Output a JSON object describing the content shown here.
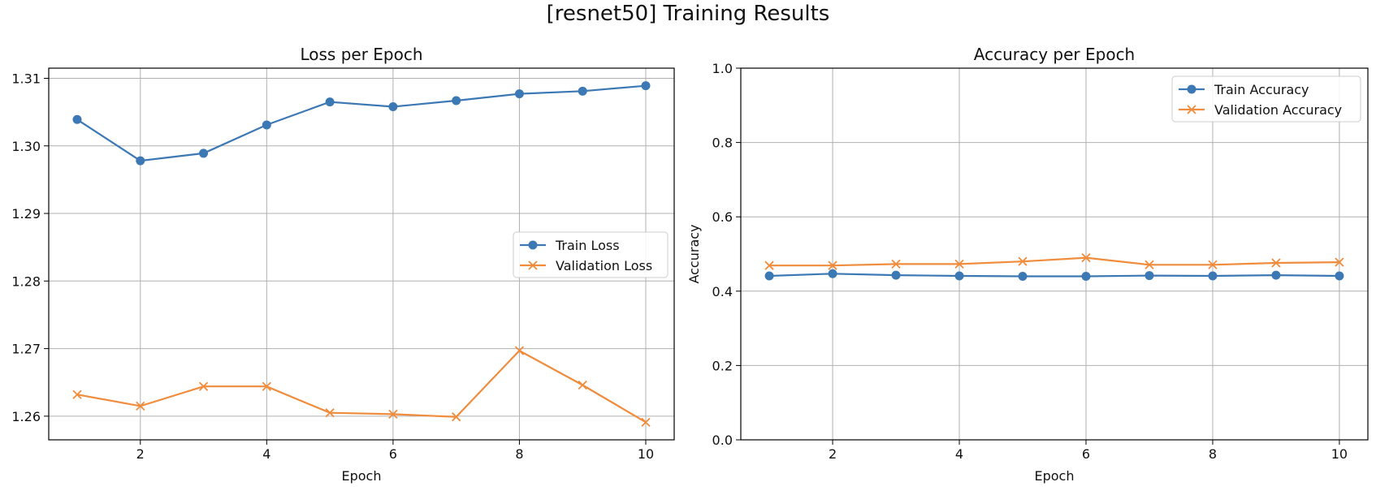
{
  "figure": {
    "title": "[resnet50] Training Results"
  },
  "colors": {
    "train": "#3c78b4",
    "validation": "#f08c3c",
    "grid": "#b0b0b0",
    "axes": "#000000"
  },
  "chart_data": [
    {
      "type": "line",
      "title": "Loss per Epoch",
      "xlabel": "Epoch",
      "ylabel": "",
      "x": [
        1,
        2,
        3,
        4,
        5,
        6,
        7,
        8,
        9,
        10
      ],
      "xlim": [
        0.55,
        10.45
      ],
      "ylim": [
        1.2565,
        1.3115
      ],
      "xticks": [
        2,
        4,
        6,
        8,
        10
      ],
      "yticks": [
        1.26,
        1.27,
        1.28,
        1.29,
        1.3,
        1.31
      ],
      "ytick_labels": [
        "1.26",
        "1.27",
        "1.28",
        "1.29",
        "1.30",
        "1.31"
      ],
      "grid": true,
      "legend": "center-right",
      "series": [
        {
          "name": "Train Loss",
          "marker": "circle",
          "color": "#3c78b4",
          "values": [
            1.3039,
            1.2978,
            1.2989,
            1.3031,
            1.3065,
            1.3058,
            1.3067,
            1.3077,
            1.3081,
            1.3089
          ]
        },
        {
          "name": "Validation Loss",
          "marker": "x",
          "color": "#f08c3c",
          "values": [
            1.2632,
            1.2615,
            1.2644,
            1.2644,
            1.2605,
            1.2603,
            1.2599,
            1.2697,
            1.2646,
            1.2591
          ]
        }
      ]
    },
    {
      "type": "line",
      "title": "Accuracy per Epoch",
      "xlabel": "Epoch",
      "ylabel": "Accuracy",
      "x": [
        1,
        2,
        3,
        4,
        5,
        6,
        7,
        8,
        9,
        10
      ],
      "xlim": [
        0.55,
        10.45
      ],
      "ylim": [
        0,
        1
      ],
      "xticks": [
        2,
        4,
        6,
        8,
        10
      ],
      "yticks": [
        0,
        0.2,
        0.4,
        0.6,
        0.8,
        1.0
      ],
      "ytick_labels": [
        "0.0",
        "0.2",
        "0.4",
        "0.6",
        "0.8",
        "1.0"
      ],
      "grid": true,
      "legend": "top-right",
      "series": [
        {
          "name": "Train Accuracy",
          "marker": "circle",
          "color": "#3c78b4",
          "values": [
            0.441,
            0.447,
            0.443,
            0.441,
            0.44,
            0.44,
            0.442,
            0.441,
            0.443,
            0.441
          ]
        },
        {
          "name": "Validation Accuracy",
          "marker": "x",
          "color": "#f08c3c",
          "values": [
            0.469,
            0.469,
            0.473,
            0.473,
            0.48,
            0.49,
            0.471,
            0.471,
            0.476,
            0.478
          ]
        }
      ]
    }
  ]
}
